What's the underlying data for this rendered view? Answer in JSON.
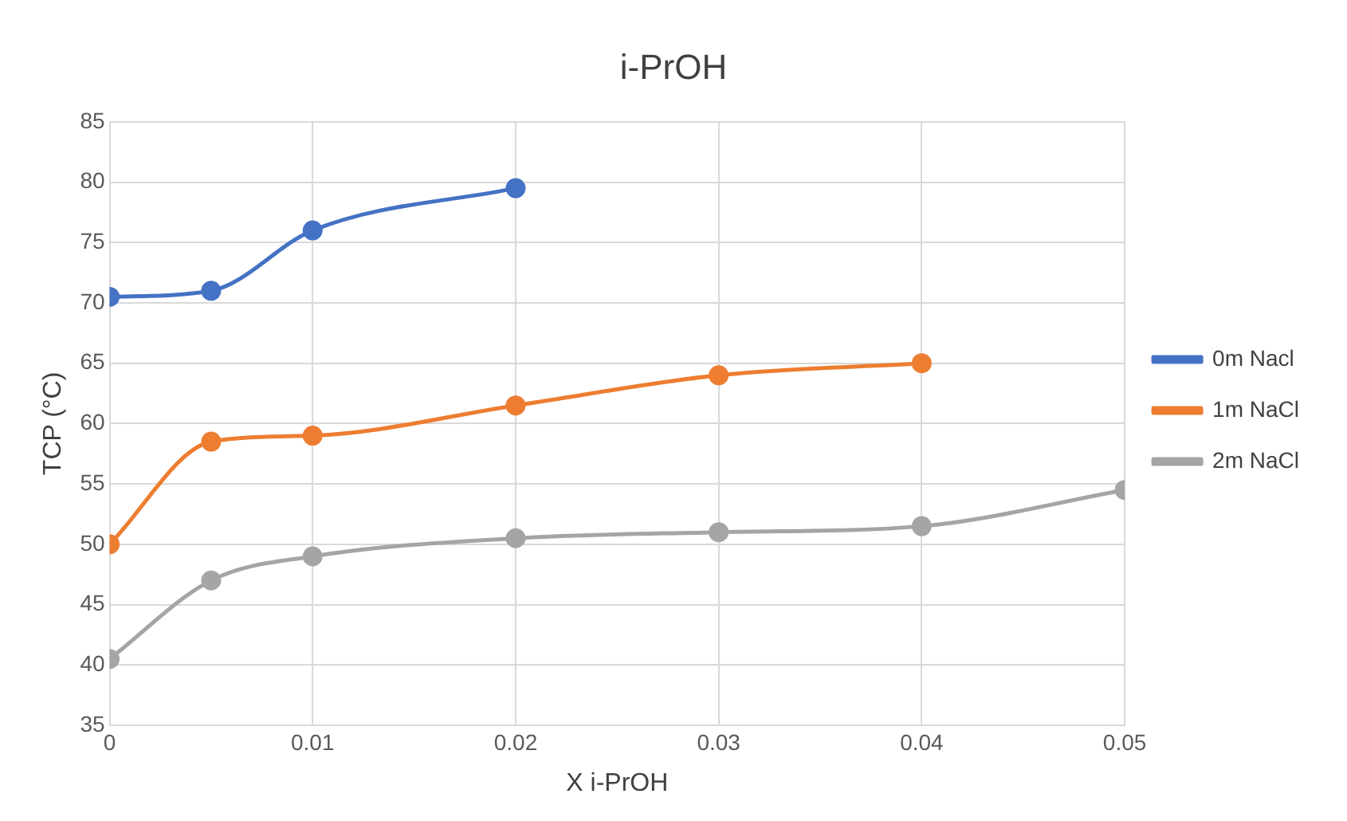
{
  "chart_data": {
    "type": "line",
    "title": "i-PrOH",
    "xlabel": "X i-PrOH",
    "ylabel": "TCP (°C)",
    "xlim": [
      0,
      0.05
    ],
    "xticks": [
      0,
      0.01,
      0.02,
      0.03,
      0.04,
      0.05
    ],
    "ylim": [
      35,
      85
    ],
    "yticks": [
      35,
      40,
      45,
      50,
      55,
      60,
      65,
      70,
      75,
      80,
      85
    ],
    "grid": true,
    "legend": "right",
    "marker": "circle",
    "line_style": "solid",
    "series": [
      {
        "name": "0m Nacl",
        "color": "#4472c4",
        "x": [
          0,
          0.005,
          0.01,
          0.02
        ],
        "values": [
          70.5,
          71,
          76,
          79.5
        ]
      },
      {
        "name": "1m NaCl",
        "color": "#ed7d31",
        "x": [
          0,
          0.005,
          0.01,
          0.02,
          0.03,
          0.04
        ],
        "values": [
          50,
          58.5,
          59,
          61.5,
          64,
          65
        ]
      },
      {
        "name": "2m NaCl",
        "color": "#a5a5a5",
        "x": [
          0,
          0.005,
          0.01,
          0.02,
          0.03,
          0.04,
          0.05
        ],
        "values": [
          40.5,
          47,
          49,
          50.5,
          51,
          51.5,
          54.5
        ]
      }
    ]
  }
}
